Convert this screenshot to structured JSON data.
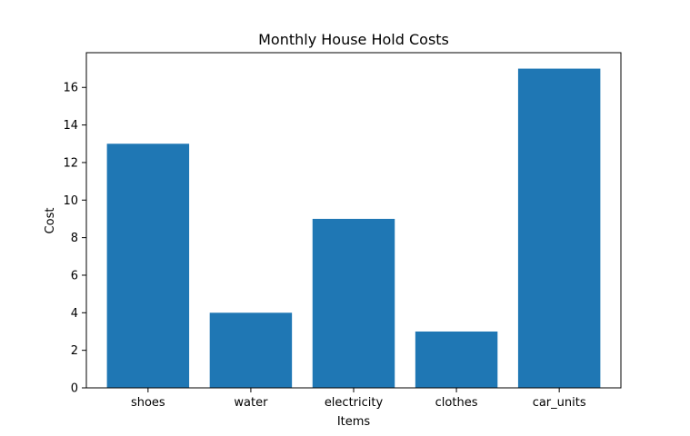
{
  "chart_data": {
    "type": "bar",
    "title": "Monthly House Hold Costs",
    "xlabel": "Items",
    "ylabel": "Cost",
    "categories": [
      "shoes",
      "water",
      "electricity",
      "clothes",
      "car_units"
    ],
    "values": [
      13,
      4,
      9,
      3,
      17
    ],
    "ylim": [
      0,
      17.85
    ],
    "yticks": [
      0,
      2,
      4,
      6,
      8,
      10,
      12,
      14,
      16
    ],
    "grid": false,
    "bar_color": "#1f77b4"
  }
}
